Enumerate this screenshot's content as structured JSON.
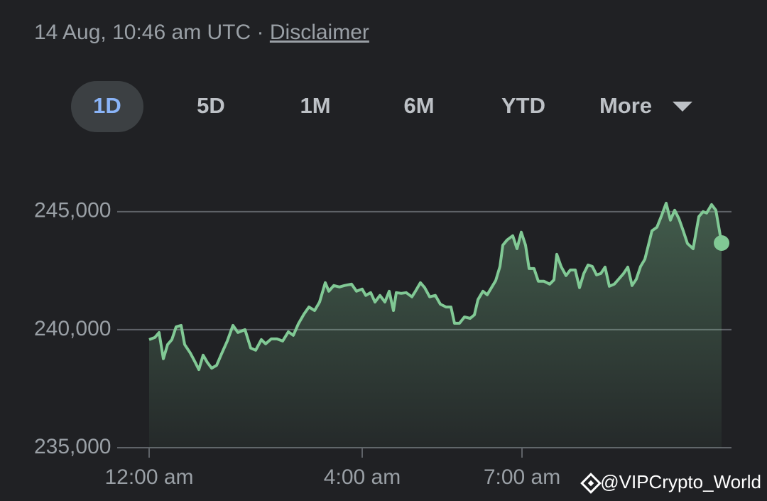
{
  "header": {
    "timestamp": "14 Aug, 10:46 am UTC",
    "separator": "·",
    "disclaimer": "Disclaimer"
  },
  "ranges": [
    "1D",
    "5D",
    "1M",
    "6M",
    "YTD",
    "More"
  ],
  "selected_range": "1D",
  "watermark": "@VIPCrypto_World",
  "chart_data": {
    "type": "area",
    "color": "#81c995",
    "x": [
      0,
      0.107,
      0.187,
      0.267,
      0.347,
      0.427,
      0.507,
      0.6,
      0.667,
      0.773,
      0.867,
      0.933,
      1.013,
      1.093,
      1.173,
      1.267,
      1.36,
      1.467,
      1.573,
      1.667,
      1.8,
      1.907,
      2,
      2.107,
      2.187,
      2.293,
      2.4,
      2.507,
      2.613,
      2.707,
      2.8,
      2.907,
      3,
      3.107,
      3.2,
      3.307,
      3.373,
      3.467,
      3.573,
      3.667,
      3.8,
      3.893,
      4,
      4.067,
      4.16,
      4.24,
      4.333,
      4.427,
      4.507,
      4.587,
      4.64,
      4.733,
      4.827,
      4.933,
      5,
      5.093,
      5.173,
      5.267,
      5.373,
      5.467,
      5.573,
      5.667,
      5.733,
      5.827,
      5.92,
      6.027,
      6.107,
      6.173,
      6.267,
      6.347,
      6.427,
      6.507,
      6.587,
      6.64,
      6.72,
      6.827,
      6.907,
      6.987,
      7.067,
      7.133,
      7.227,
      7.307,
      7.413,
      7.52,
      7.6,
      7.653,
      7.733,
      7.827,
      7.907,
      8,
      8.08,
      8.16,
      8.24,
      8.32,
      8.4,
      8.48,
      8.56,
      8.64,
      8.733,
      8.827,
      8.907,
      8.987,
      9.067,
      9.147,
      9.227,
      9.307,
      9.373,
      9.44,
      9.533,
      9.613,
      9.707,
      9.787,
      9.867,
      9.947,
      10.027,
      10.107,
      10.213,
      10.32,
      10.4,
      10.467,
      10.56,
      10.64,
      10.747
    ],
    "values": [
      239580,
      239670,
      239880,
      238770,
      239370,
      239580,
      240120,
      240180,
      239370,
      239010,
      238610,
      238310,
      238920,
      238610,
      238370,
      238490,
      238980,
      239520,
      240180,
      239880,
      240000,
      239220,
      239130,
      239580,
      239400,
      239610,
      239610,
      239520,
      239910,
      239760,
      240240,
      240660,
      240960,
      240810,
      241170,
      241990,
      241630,
      241870,
      241810,
      241870,
      241930,
      241630,
      241720,
      241450,
      241570,
      241170,
      241450,
      241170,
      241630,
      240810,
      241570,
      241540,
      241570,
      241390,
      241630,
      241990,
      241780,
      241390,
      241450,
      241080,
      240960,
      240960,
      240270,
      240270,
      240540,
      240480,
      240630,
      241270,
      241630,
      241480,
      241780,
      242080,
      242680,
      243580,
      243800,
      243980,
      243430,
      244130,
      243580,
      242590,
      242590,
      242050,
      242050,
      241930,
      242110,
      243190,
      242680,
      242290,
      242530,
      242530,
      241780,
      242380,
      242740,
      242680,
      242320,
      242380,
      242650,
      241840,
      241930,
      242170,
      242380,
      242650,
      241870,
      242140,
      242680,
      242980,
      243580,
      244190,
      244340,
      244790,
      245360,
      244640,
      245060,
      244700,
      244190,
      243650,
      243430,
      244790,
      245000,
      244940,
      245300,
      245060,
      243670
    ],
    "xlim": [
      0,
      10.933
    ],
    "ylim": [
      235000,
      246500
    ],
    "xticks": [
      {
        "value": 0,
        "label": "12:00 am"
      },
      {
        "value": 4,
        "label": "4:00 am"
      },
      {
        "value": 7,
        "label": "7:00 am"
      }
    ],
    "yticks": [
      {
        "value": 235000,
        "label": "235,000"
      },
      {
        "value": 240000,
        "label": "240,000"
      },
      {
        "value": 245000,
        "label": "245,000"
      }
    ],
    "grid": true
  }
}
